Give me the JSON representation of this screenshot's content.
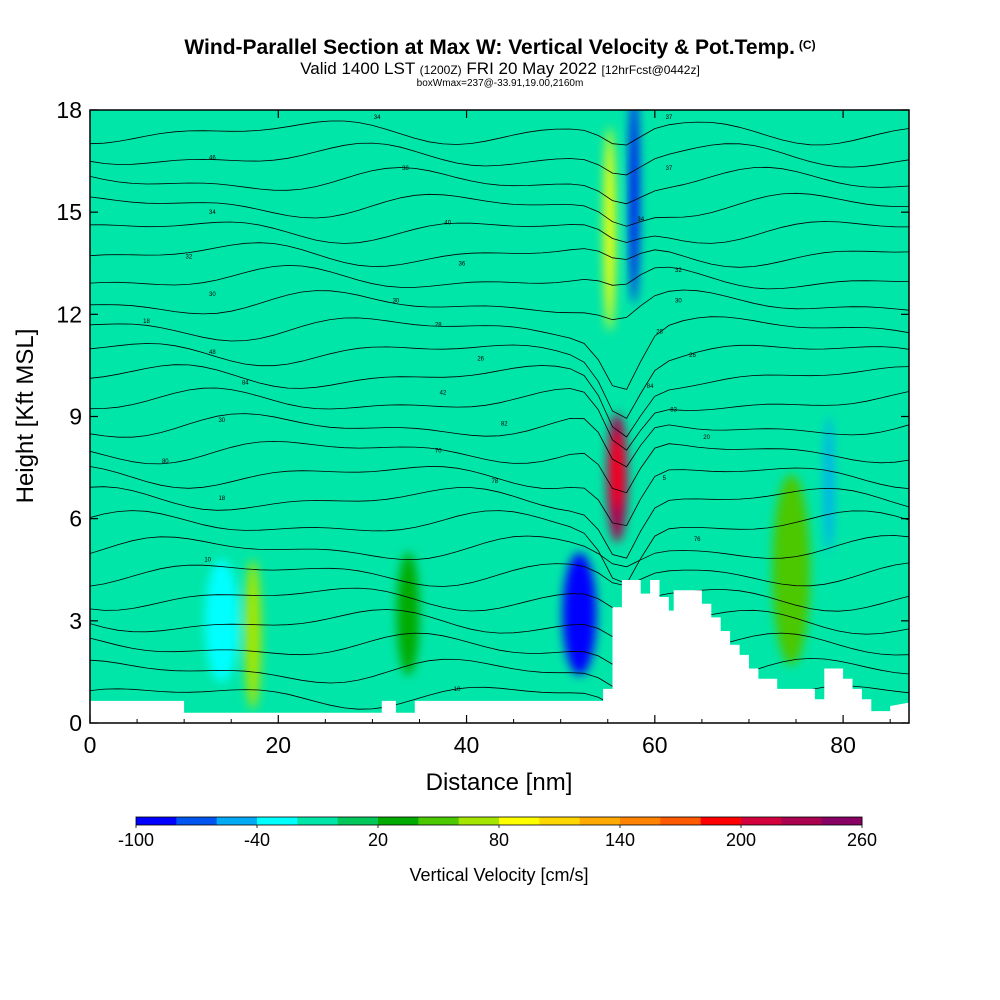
{
  "title": {
    "main": "Wind-Parallel Section at Max W: Vertical Velocity & Pot.Temp.",
    "copyright": "(C)",
    "valid_a": "Valid 1400 LST",
    "valid_utc": "(1200Z)",
    "valid_b": "FRI 20 May 2022",
    "forecast": "[12hrFcst@0442z]",
    "box": "boxWmax=237@-33.91,19.00,2160m"
  },
  "chart_data": {
    "type": "heatmap",
    "xlabel": "Distance [nm]",
    "ylabel": "Height [Kft MSL]",
    "xlim": [
      0,
      87
    ],
    "ylim": [
      0,
      18
    ],
    "xticks": [
      0,
      20,
      40,
      60,
      80
    ],
    "yticks": [
      0,
      3,
      6,
      9,
      12,
      15,
      18
    ],
    "terrain_profile": [
      [
        0,
        0.65
      ],
      [
        10,
        0.65
      ],
      [
        10,
        0.3
      ],
      [
        12,
        0.3
      ],
      [
        31,
        0.3
      ],
      [
        31,
        0.65
      ],
      [
        32.5,
        0.65
      ],
      [
        32.5,
        0.3
      ],
      [
        34.5,
        0.3
      ],
      [
        34.5,
        0.65
      ],
      [
        54.5,
        0.65
      ],
      [
        54.5,
        1.0
      ],
      [
        55.5,
        1.0
      ],
      [
        55.5,
        3.4
      ],
      [
        56.5,
        3.4
      ],
      [
        56.5,
        4.2
      ],
      [
        58.5,
        4.2
      ],
      [
        58.5,
        3.8
      ],
      [
        59.5,
        3.8
      ],
      [
        59.5,
        4.2
      ],
      [
        60.5,
        4.2
      ],
      [
        60.5,
        3.7
      ],
      [
        61.5,
        3.7
      ],
      [
        61.5,
        3.3
      ],
      [
        62,
        3.3
      ],
      [
        62,
        3.9
      ],
      [
        65,
        3.9
      ],
      [
        65,
        3.5
      ],
      [
        66,
        3.5
      ],
      [
        66,
        3.1
      ],
      [
        67,
        3.1
      ],
      [
        67,
        2.7
      ],
      [
        68,
        2.7
      ],
      [
        68,
        2.3
      ],
      [
        69,
        2.3
      ],
      [
        69,
        2.0
      ],
      [
        70,
        2.0
      ],
      [
        70,
        1.6
      ],
      [
        71,
        1.6
      ],
      [
        71,
        1.3
      ],
      [
        73,
        1.3
      ],
      [
        73,
        1.0
      ],
      [
        77,
        1.0
      ],
      [
        77,
        0.7
      ],
      [
        78,
        0.7
      ],
      [
        78,
        1.6
      ],
      [
        80,
        1.6
      ],
      [
        80,
        1.3
      ],
      [
        81,
        1.3
      ],
      [
        81,
        1.0
      ],
      [
        82,
        1.0
      ],
      [
        82,
        0.7
      ],
      [
        83,
        0.7
      ],
      [
        83,
        0.35
      ],
      [
        85,
        0.35
      ],
      [
        85,
        0.5
      ],
      [
        87,
        0.6
      ]
    ],
    "vertical_velocity_features": [
      {
        "x": 56,
        "y": 7.2,
        "rx": 1.1,
        "ry": 1.9,
        "value": 237
      },
      {
        "x": 57.8,
        "y": 15.5,
        "rx": 0.5,
        "ry": 3.2,
        "value": -100
      },
      {
        "x": 55.2,
        "y": 14.5,
        "rx": 0.6,
        "ry": 3.0,
        "value": 80
      },
      {
        "x": 52,
        "y": 3.2,
        "rx": 1.8,
        "ry": 1.8,
        "value": -90
      },
      {
        "x": 17.3,
        "y": 2.6,
        "rx": 0.9,
        "ry": 2.2,
        "value": 60
      },
      {
        "x": 33.8,
        "y": 3.2,
        "rx": 1.2,
        "ry": 1.8,
        "value": 30
      },
      {
        "x": 74.5,
        "y": 4.5,
        "rx": 2.0,
        "ry": 2.8,
        "value": 45
      },
      {
        "x": 14,
        "y": 3.0,
        "rx": 1.8,
        "ry": 1.8,
        "value": -40
      },
      {
        "x": 78.5,
        "y": 7.0,
        "rx": 0.5,
        "ry": 2.0,
        "value": -50
      }
    ],
    "contour_labels": [
      {
        "x": 30.5,
        "y": 17.8,
        "text": "34"
      },
      {
        "x": 13,
        "y": 16.6,
        "text": "46"
      },
      {
        "x": 33.5,
        "y": 16.3,
        "text": "38"
      },
      {
        "x": 13,
        "y": 15.0,
        "text": "34"
      },
      {
        "x": 38,
        "y": 14.7,
        "text": "40"
      },
      {
        "x": 10.5,
        "y": 13.7,
        "text": "32"
      },
      {
        "x": 39.5,
        "y": 13.5,
        "text": "36"
      },
      {
        "x": 13,
        "y": 12.6,
        "text": "30"
      },
      {
        "x": 32.5,
        "y": 12.4,
        "text": "30"
      },
      {
        "x": 6,
        "y": 11.8,
        "text": "18"
      },
      {
        "x": 37,
        "y": 11.7,
        "text": "28"
      },
      {
        "x": 13,
        "y": 10.9,
        "text": "48"
      },
      {
        "x": 41.5,
        "y": 10.7,
        "text": "26"
      },
      {
        "x": 16.5,
        "y": 10.0,
        "text": "84"
      },
      {
        "x": 37.5,
        "y": 9.7,
        "text": "42"
      },
      {
        "x": 14,
        "y": 8.9,
        "text": "30"
      },
      {
        "x": 44,
        "y": 8.8,
        "text": "82"
      },
      {
        "x": 8,
        "y": 7.7,
        "text": "80"
      },
      {
        "x": 37,
        "y": 8.0,
        "text": "70"
      },
      {
        "x": 14,
        "y": 6.6,
        "text": "18"
      },
      {
        "x": 43,
        "y": 7.1,
        "text": "78"
      },
      {
        "x": 12.5,
        "y": 4.8,
        "text": "10"
      },
      {
        "x": 39,
        "y": 1.0,
        "text": "10"
      },
      {
        "x": 61.5,
        "y": 17.8,
        "text": "37"
      },
      {
        "x": 61.5,
        "y": 16.3,
        "text": "37"
      },
      {
        "x": 58.5,
        "y": 14.8,
        "text": "34"
      },
      {
        "x": 62.5,
        "y": 13.3,
        "text": "32"
      },
      {
        "x": 62.5,
        "y": 12.4,
        "text": "30"
      },
      {
        "x": 60.5,
        "y": 11.5,
        "text": "28"
      },
      {
        "x": 64,
        "y": 10.8,
        "text": "26"
      },
      {
        "x": 59.5,
        "y": 9.9,
        "text": "84"
      },
      {
        "x": 62,
        "y": 9.2,
        "text": "83"
      },
      {
        "x": 65.5,
        "y": 8.4,
        "text": "20"
      },
      {
        "x": 61,
        "y": 7.2,
        "text": "5"
      },
      {
        "x": 64.5,
        "y": 5.4,
        "text": "76"
      }
    ],
    "colorbar": {
      "label": "Vertical Velocity [cm/s]",
      "min": -100,
      "max": 260,
      "step": 20,
      "tick_values": [
        -100,
        -40,
        20,
        80,
        140,
        200,
        260
      ],
      "tick_labels": [
        "-100",
        "-40",
        "20",
        "80",
        "140",
        "200",
        "260"
      ],
      "colors": [
        "#0000ff",
        "#0055f0",
        "#00aaf5",
        "#00ffff",
        "#00e6a8",
        "#00c85a",
        "#00aa00",
        "#4bc800",
        "#a5e600",
        "#ffff00",
        "#ffd700",
        "#ffaa00",
        "#ff8200",
        "#ff5a00",
        "#ff0000",
        "#d2003c",
        "#aa0050",
        "#870064"
      ]
    }
  }
}
